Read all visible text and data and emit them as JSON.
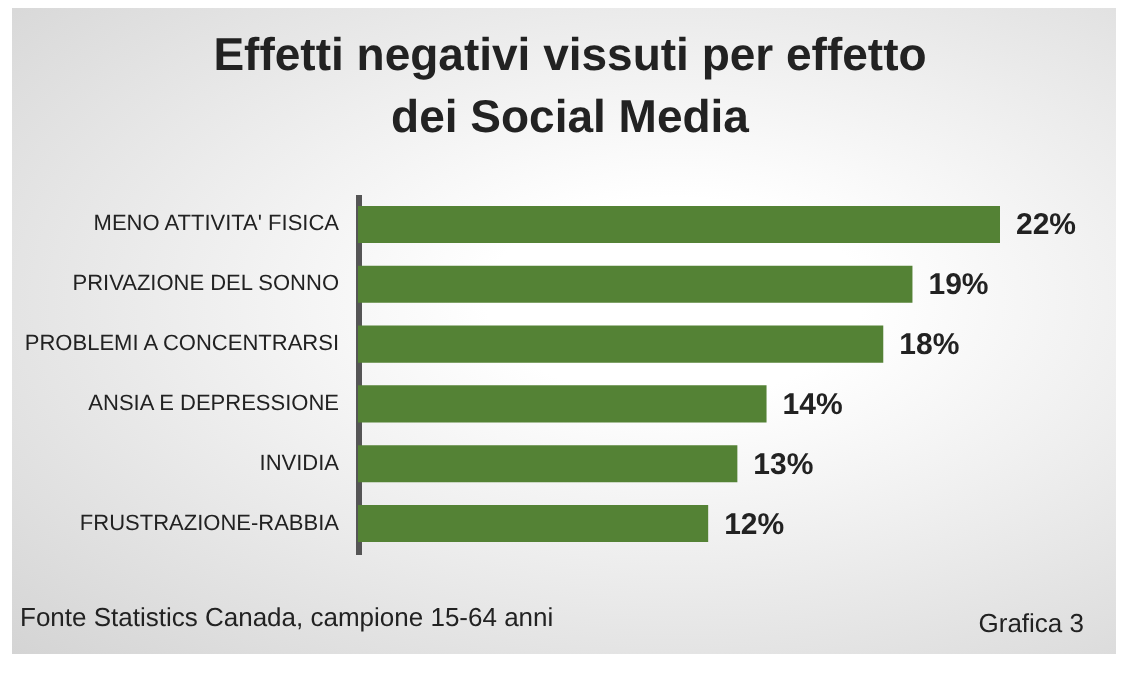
{
  "chart_data": {
    "type": "bar",
    "orientation": "horizontal",
    "title": "Effetti negativi vissuti per effetto dei Social Media",
    "categories": [
      "MENO ATTIVITA' FISICA",
      "PRIVAZIONE DEL SONNO",
      "PROBLEMI A CONCENTRARSI",
      "ANSIA E DEPRESSIONE",
      "INVIDIA",
      "FRUSTRAZIONE-RABBIA"
    ],
    "values": [
      22,
      19,
      18,
      14,
      13,
      12
    ],
    "value_labels": [
      "22%",
      "19%",
      "18%",
      "14%",
      "13%",
      "12%"
    ],
    "color": "#548235",
    "annotations": [
      "Fonte Statistics Canada, campione 15-64 anni",
      "Grafica 3"
    ]
  }
}
